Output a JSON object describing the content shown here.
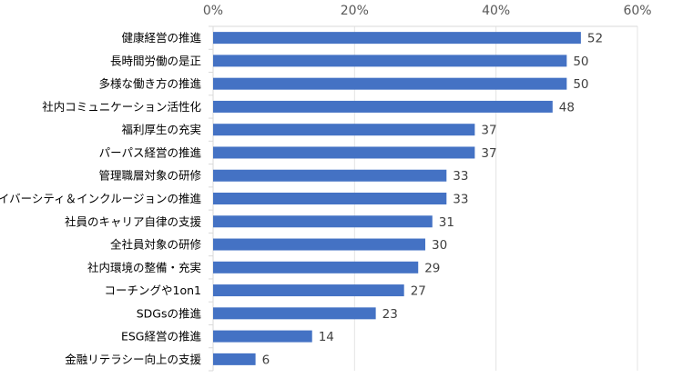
{
  "chart_data": {
    "type": "bar",
    "orientation": "horizontal",
    "categories": [
      "健康経営の推進",
      "長時間労働の是正",
      "多様な働き方の推進",
      "社内コミュニケーション活性化",
      "福利厚生の充実",
      "パーパス経営の推進",
      "管理職層対象の研修",
      "ダイバーシティ＆インクルージョンの推進",
      "社員のキャリア自律の支援",
      "全社員対象の研修",
      "社内環境の整備・充実",
      "コーチングや1on1",
      "SDGsの推進",
      "ESG経営の推進",
      "金融リテラシー向上の支援"
    ],
    "values": [
      52,
      50,
      50,
      48,
      37,
      37,
      33,
      33,
      31,
      30,
      29,
      27,
      23,
      14,
      6
    ],
    "data_labels": [
      "52",
      "50",
      "50",
      "48",
      "37",
      "37",
      "33",
      "33",
      "31",
      "30",
      "29",
      "27",
      "23",
      "14",
      "6"
    ],
    "xlim": [
      0,
      60
    ],
    "x_ticks": [
      0,
      20,
      40,
      60
    ],
    "x_tick_labels": [
      "0%",
      "20%",
      "40%",
      "60%"
    ],
    "x_axis_position": "top",
    "grid": true,
    "bar_color": "#4472C4"
  }
}
